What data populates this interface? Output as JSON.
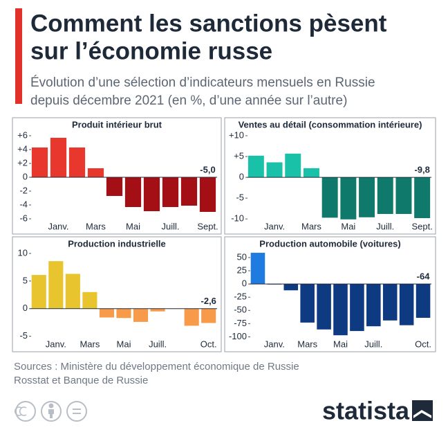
{
  "header": {
    "title_lines": [
      "Comment les sanctions pèsent",
      "sur l’économie russe"
    ],
    "subtitle_lines": [
      "Évolution d’une sélection d’indicateurs mensuels en Russie",
      "depuis décembre 2021 (en %, d’une année sur l’autre)"
    ]
  },
  "chart_data": [
    {
      "type": "bar",
      "title": "Produit intérieur brut",
      "categories": [
        null,
        "Janv.",
        null,
        "Mars",
        null,
        "Mai",
        null,
        "Juill.",
        null,
        "Sept."
      ],
      "values": [
        4.3,
        5.7,
        4.3,
        1.3,
        -2.7,
        -4.3,
        -4.9,
        -4.3,
        -4.1,
        -5.0
      ],
      "value_labels": [
        null,
        null,
        null,
        null,
        null,
        null,
        null,
        null,
        null,
        "-5,0"
      ],
      "color_positive": "#e8372c",
      "color_negative": "#a30f14",
      "ylim": [
        -6.2,
        6.6
      ],
      "yticks": [
        {
          "value": 6,
          "label": "+6"
        },
        {
          "value": 4,
          "label": "+4"
        },
        {
          "value": 2,
          "label": "+2"
        },
        0,
        -2,
        -4,
        -6
      ]
    },
    {
      "type": "bar",
      "title": "Ventes au détail (consommation intérieure)",
      "categories": [
        null,
        "Janv.",
        null,
        "Mars",
        null,
        "Mai",
        null,
        "Juill.",
        null,
        "Sept."
      ],
      "values": [
        5.2,
        3.6,
        5.7,
        2.2,
        -9.7,
        -10.1,
        -9.6,
        -8.8,
        -8.8,
        -9.8
      ],
      "value_labels": [
        null,
        null,
        null,
        null,
        null,
        null,
        null,
        null,
        null,
        "-9,8"
      ],
      "color_positive": "#19c1a8",
      "color_negative": "#0f7a6b",
      "ylim": [
        -10.3,
        11
      ],
      "yticks": [
        {
          "value": 10,
          "label": "+10"
        },
        {
          "value": 5,
          "label": "+5"
        },
        0,
        -5,
        -10
      ]
    },
    {
      "type": "bar",
      "title": "Production industrielle",
      "categories": [
        null,
        "Janv.",
        null,
        "Mars",
        null,
        "Mai",
        null,
        "Juill.",
        null,
        null,
        "Oct."
      ],
      "values": [
        6.1,
        8.6,
        6.3,
        3.0,
        -1.6,
        -1.7,
        -2.4,
        -0.5,
        0,
        -3.1,
        -2.6
      ],
      "value_labels": [
        null,
        null,
        null,
        null,
        null,
        null,
        null,
        null,
        null,
        null,
        "-2,6"
      ],
      "color_positive": "#e8c42e",
      "color_negative": "#f79a4a",
      "ylim": [
        -5.3,
        10.5
      ],
      "yticks": [
        10,
        5,
        0,
        -5
      ]
    },
    {
      "type": "bar",
      "title": "Production automobile (voitures)",
      "categories": [
        null,
        "Janv.",
        null,
        "Mars",
        null,
        "Mai",
        null,
        "Juill.",
        null,
        null,
        "Oct."
      ],
      "values": [
        59,
        -1,
        -12,
        -73,
        -86,
        -97,
        -89,
        -80,
        -69,
        -78,
        -64
      ],
      "value_labels": [
        null,
        null,
        null,
        null,
        null,
        null,
        null,
        null,
        null,
        null,
        "-64"
      ],
      "color_positive": "#1f7be0",
      "color_negative": "#0e3a82",
      "ylim": [
        -102,
        63
      ],
      "yticks": [
        50,
        25,
        0,
        -25,
        -50,
        -75,
        -100
      ]
    }
  ],
  "footer": {
    "source_lines": [
      "Sources : Ministère du développement économique de Russie",
      "Rosstat et Banque de Russie"
    ],
    "brand": "statista"
  }
}
